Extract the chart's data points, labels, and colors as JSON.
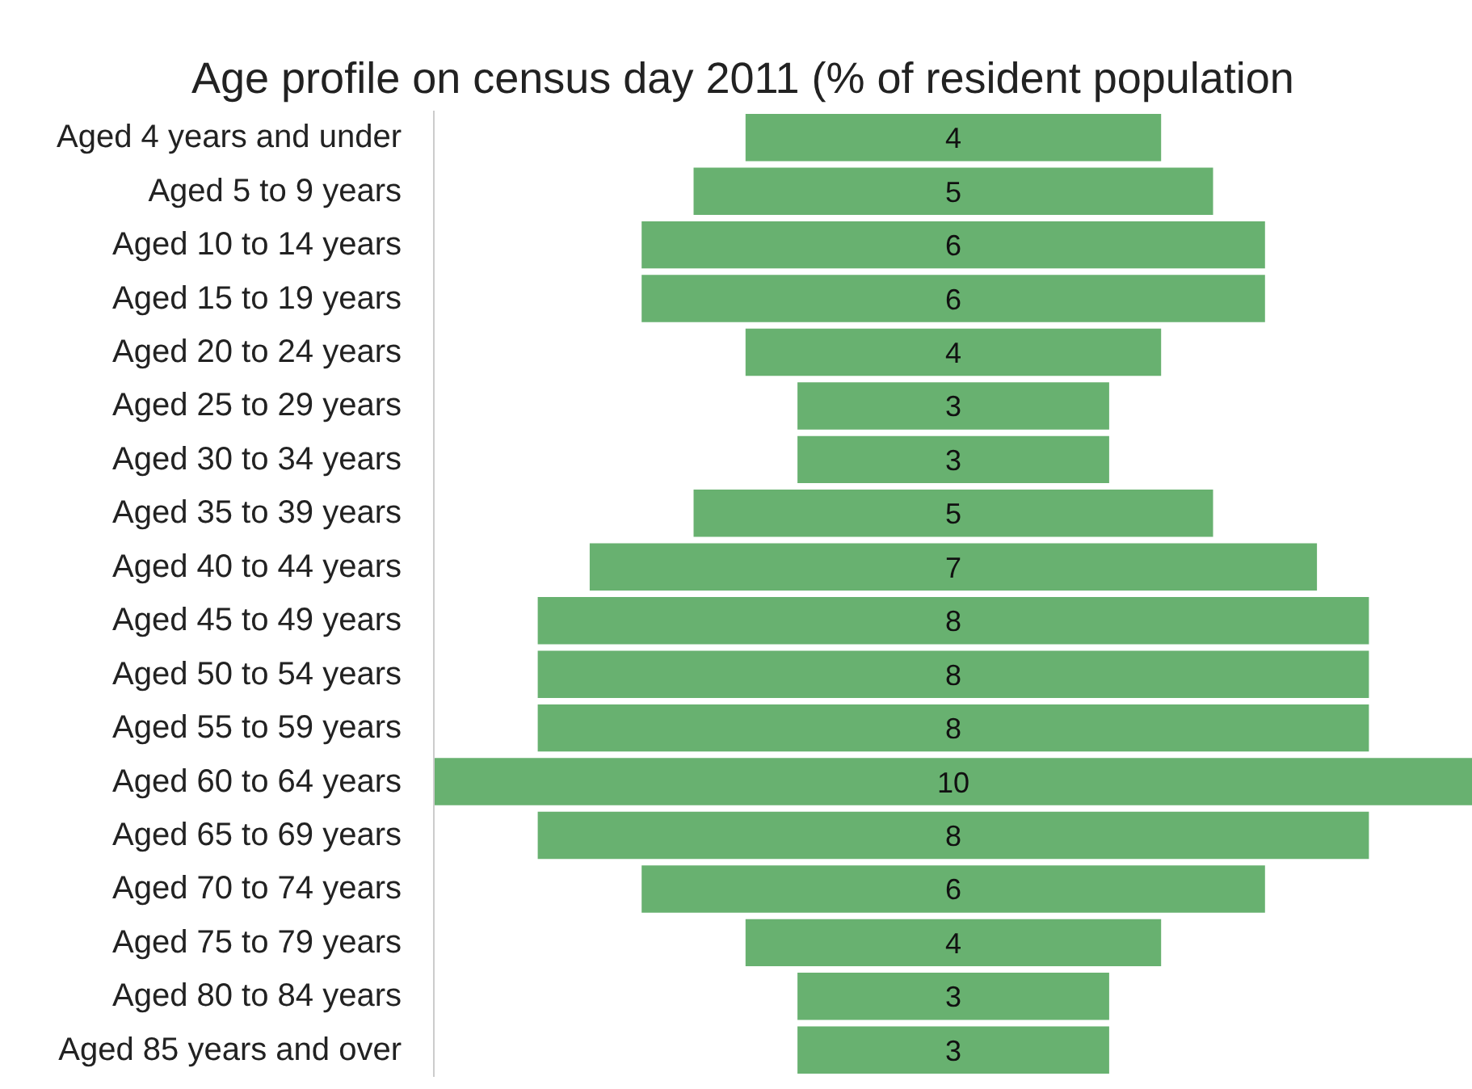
{
  "chart_data": {
    "type": "other",
    "title": "Age profile on census day 2011 (% of resident population",
    "categories": [
      "Aged 4 years and under",
      "Aged 5 to 9 years",
      "Aged 10 to 14 years",
      "Aged 15 to 19 years",
      "Aged 20 to 24 years",
      "Aged 25 to 29 years",
      "Aged 30 to 34 years",
      "Aged 35 to 39 years",
      "Aged 40 to 44 years",
      "Aged 45 to 49 years",
      "Aged 50 to 54 years",
      "Aged 55 to 59 years",
      "Aged 60 to 64 years",
      "Aged 65 to 69 years",
      "Aged 70 to 74 years",
      "Aged 75 to 79 years",
      "Aged 80 to 84 years",
      "Aged 85 years and over"
    ],
    "values": [
      4,
      5,
      6,
      6,
      4,
      3,
      3,
      5,
      7,
      8,
      8,
      8,
      10,
      8,
      6,
      4,
      3,
      3
    ],
    "data_labels": true,
    "color": "#68b170"
  }
}
